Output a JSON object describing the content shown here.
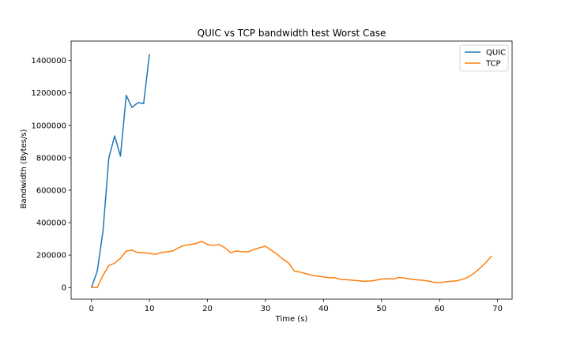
{
  "chart_data": {
    "type": "line",
    "title": "QUIC vs TCP bandwidth test Worst Case",
    "xlabel": "Time (s)",
    "ylabel": "Bandwidth (Bytes/s)",
    "xlim": [
      -3.5,
      72.5
    ],
    "ylim": [
      -72000,
      1520000
    ],
    "xticks": [
      0,
      10,
      20,
      30,
      40,
      50,
      60,
      70
    ],
    "yticks": [
      0,
      200000,
      400000,
      600000,
      800000,
      1000000,
      1200000,
      1400000
    ],
    "xtick_labels": [
      "0",
      "10",
      "20",
      "30",
      "40",
      "50",
      "60",
      "70"
    ],
    "ytick_labels": [
      "0",
      "200000",
      "400000",
      "600000",
      "800000",
      "1000000",
      "1200000",
      "1400000"
    ],
    "grid": false,
    "legend_position": "top-right",
    "series": [
      {
        "name": "QUIC",
        "color": "#1f77b4",
        "x": [
          0,
          1,
          2,
          3,
          4,
          5,
          6,
          7,
          8,
          9,
          10
        ],
        "y": [
          0,
          100000,
          350000,
          800000,
          935000,
          810000,
          1185000,
          1110000,
          1140000,
          1135000,
          1440000
        ]
      },
      {
        "name": "TCP",
        "color": "#ff7f0e",
        "x": [
          0,
          1,
          2,
          3,
          4,
          5,
          6,
          7,
          8,
          9,
          10,
          11,
          12,
          13,
          14,
          15,
          16,
          17,
          18,
          19,
          20,
          21,
          22,
          23,
          24,
          25,
          26,
          27,
          28,
          29,
          30,
          31,
          32,
          33,
          34,
          35,
          36,
          37,
          38,
          39,
          40,
          41,
          42,
          43,
          44,
          45,
          46,
          47,
          48,
          49,
          50,
          51,
          52,
          53,
          54,
          55,
          56,
          57,
          58,
          59,
          60,
          61,
          62,
          63,
          64,
          65,
          66,
          67,
          68,
          69
        ],
        "y": [
          0,
          0,
          75000,
          135000,
          150000,
          180000,
          225000,
          230000,
          215000,
          215000,
          210000,
          205000,
          215000,
          220000,
          225000,
          245000,
          260000,
          265000,
          270000,
          285000,
          265000,
          260000,
          265000,
          245000,
          215000,
          225000,
          220000,
          220000,
          235000,
          245000,
          255000,
          230000,
          205000,
          175000,
          150000,
          100000,
          95000,
          85000,
          75000,
          70000,
          65000,
          60000,
          60000,
          50000,
          48000,
          45000,
          42000,
          38000,
          40000,
          45000,
          52000,
          55000,
          52000,
          62000,
          58000,
          52000,
          48000,
          45000,
          40000,
          32000,
          30000,
          35000,
          38000,
          42000,
          50000,
          65000,
          90000,
          120000,
          155000,
          195000
        ]
      }
    ]
  }
}
